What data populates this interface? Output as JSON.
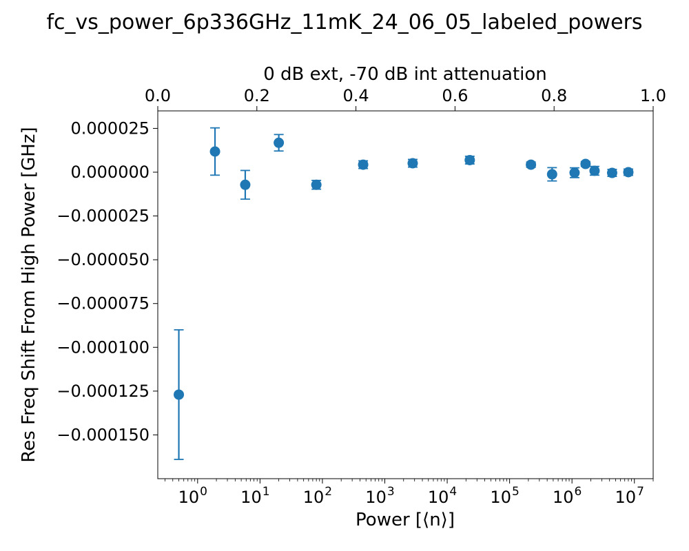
{
  "chart_data": {
    "type": "scatter",
    "title": "fc_vs_power_6p336GHz_11mK_24_06_05_labeled_powers",
    "xlabel": "Power [⟨n⟩]",
    "ylabel": "Res Freq Shift From High Power [GHz]",
    "top_xlabel": "0 dB ext, -70 dB int attenuation",
    "x_scale": "log",
    "xlim": [
      0.23,
      20000000
    ],
    "ylim": [
      -0.000175,
      3.5e-05
    ],
    "top_xlim": [
      0,
      1
    ],
    "x_tick_base": "10",
    "x_tick_exponents": [
      "0",
      "1",
      "2",
      "3",
      "4",
      "5",
      "6",
      "7"
    ],
    "y_ticks": [
      "0.000025",
      "0.000000",
      "−0.000025",
      "−0.000050",
      "−0.000075",
      "−0.000100",
      "−0.000125",
      "−0.000150"
    ],
    "y_tick_values": [
      2.5e-05,
      0,
      -2.5e-05,
      -5e-05,
      -7.5e-05,
      -0.0001,
      -0.000125,
      -0.00015
    ],
    "top_ticks": [
      "0.0",
      "0.2",
      "0.4",
      "0.6",
      "0.8",
      "1.0"
    ],
    "top_tick_values": [
      0,
      0.2,
      0.4,
      0.6,
      0.8,
      1.0
    ],
    "color": "#1f77b4",
    "grid": false,
    "series": [
      {
        "x": [
          0.5,
          1.9,
          5.8,
          20,
          80,
          450,
          2800,
          23000,
          220000,
          480000,
          1100000,
          1650000,
          2300000,
          4400000,
          8000000
        ],
        "y": [
          -0.000127,
          1.18e-05,
          -7.2e-06,
          1.68e-05,
          -7.2e-06,
          4.3e-06,
          5.1e-06,
          6.9e-06,
          4.3e-06,
          -1.2e-06,
          -3e-07,
          4.7e-06,
          8e-07,
          -4e-07,
          0.0
        ],
        "yerr": [
          3.7e-05,
          1.35e-05,
          8.2e-06,
          4.7e-06,
          2.5e-06,
          2.2e-06,
          2.2e-06,
          2.2e-06,
          1.5e-06,
          3.8e-06,
          2.8e-06,
          1.4e-06,
          2.5e-06,
          2e-06,
          1.8e-06
        ]
      }
    ]
  }
}
